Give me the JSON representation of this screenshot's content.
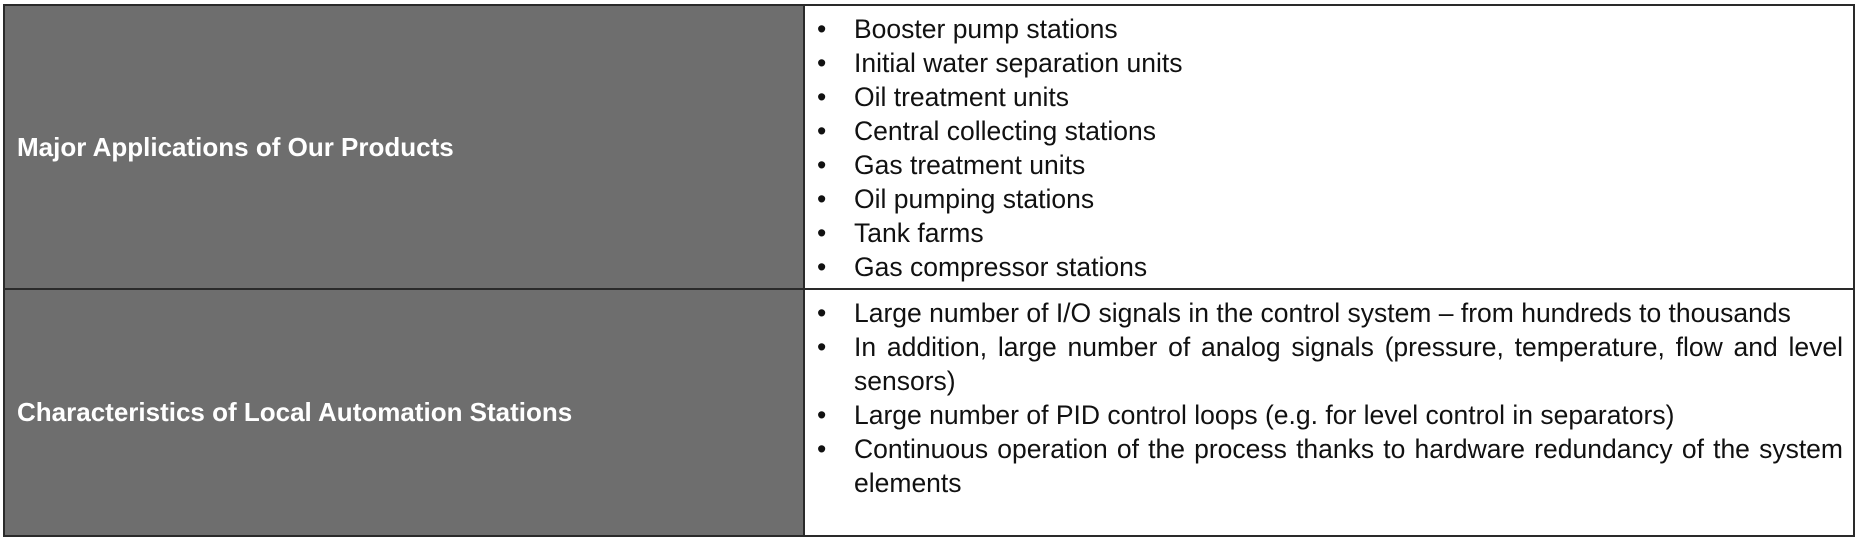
{
  "table": {
    "rows": [
      {
        "label": "Major Applications of Our Products",
        "items": [
          "Booster pump stations",
          "Initial water separation units",
          "Oil treatment units",
          "Central collecting stations",
          "Gas treatment units",
          "Oil pumping stations",
          "Tank farms",
          "Gas compressor stations"
        ]
      },
      {
        "label": "Characteristics of Local Automation Stations",
        "items": [
          "Large number of I/O signals in the control system – from hundreds to thousands",
          "In addition, large number of analog signals (pressure, temperature, flow and level sensors)",
          "Large number of PID control loops (e.g. for level control in separators)",
          "Continuous operation of the process thanks to hardware redundancy of the system elements"
        ]
      }
    ]
  },
  "colors": {
    "label_background": "#6e6e6e",
    "label_text": "#ffffff",
    "border": "#2a2a2a"
  }
}
